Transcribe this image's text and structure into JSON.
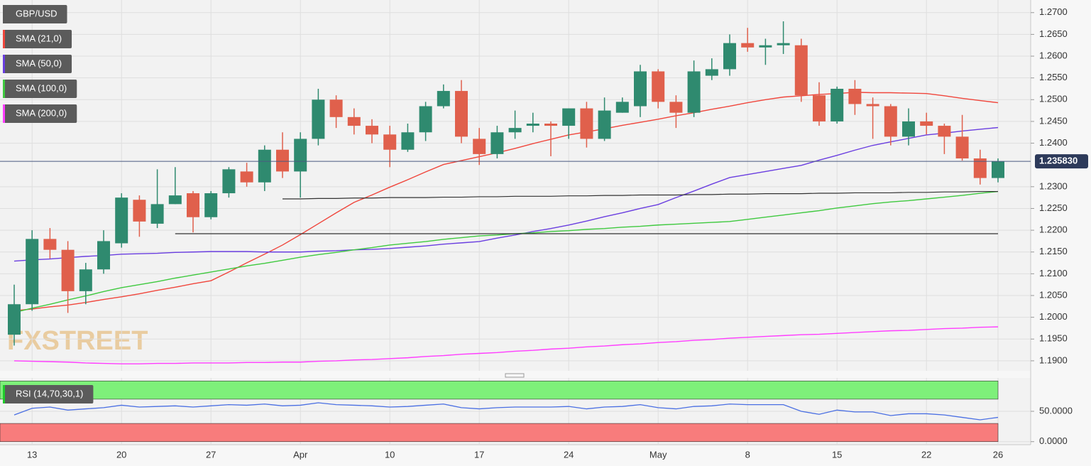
{
  "chart_data": [
    {
      "type": "candlestick",
      "title": "GBP/USD",
      "watermark": "FXSTREET",
      "categories": [
        null,
        "13",
        null,
        null,
        null,
        null,
        "20",
        null,
        null,
        null,
        null,
        "27",
        null,
        null,
        null,
        null,
        "Apr",
        null,
        null,
        null,
        null,
        "10",
        null,
        null,
        null,
        null,
        "17",
        null,
        null,
        null,
        null,
        "24",
        null,
        null,
        null,
        null,
        "May",
        null,
        null,
        null,
        null,
        "8",
        null,
        null,
        null,
        null,
        "15",
        null,
        null,
        null,
        null,
        "22",
        null,
        null,
        null,
        "26"
      ],
      "open": [
        1.196,
        1.203,
        1.218,
        1.2155,
        1.206,
        1.211,
        1.217,
        1.227,
        1.2215,
        1.226,
        1.2285,
        1.223,
        1.2285,
        1.2335,
        1.231,
        1.2385,
        1.2335,
        1.241,
        1.25,
        1.246,
        1.244,
        1.242,
        1.2385,
        1.2425,
        1.2485,
        1.252,
        1.241,
        1.2375,
        1.2425,
        1.244,
        1.2445,
        1.244,
        1.248,
        1.241,
        1.247,
        1.2485,
        1.2565,
        1.2495,
        1.247,
        1.2555,
        1.257,
        1.263,
        1.262,
        1.2625,
        1.2625,
        1.251,
        1.245,
        1.2525,
        1.249,
        1.2485,
        1.2415,
        1.245,
        1.244,
        1.2415,
        1.2365,
        1.232
      ],
      "high": [
        1.2075,
        1.22,
        1.2205,
        1.2175,
        1.2125,
        1.22,
        1.2285,
        1.228,
        1.234,
        1.2345,
        1.229,
        1.229,
        1.2345,
        1.2355,
        1.2395,
        1.2425,
        1.2425,
        1.2525,
        1.251,
        1.248,
        1.2455,
        1.244,
        1.2445,
        1.2495,
        1.2535,
        1.2545,
        1.2435,
        1.244,
        1.2475,
        1.247,
        1.245,
        1.248,
        1.2495,
        1.2505,
        1.2505,
        1.258,
        1.257,
        1.251,
        1.259,
        1.2595,
        1.265,
        1.2665,
        1.264,
        1.268,
        1.264,
        1.254,
        1.253,
        1.2545,
        1.2505,
        1.249,
        1.248,
        1.247,
        1.2445,
        1.2465,
        1.2385,
        1.2365
      ],
      "low": [
        1.1935,
        1.2015,
        1.2135,
        1.201,
        1.203,
        1.21,
        1.216,
        1.2185,
        1.2205,
        1.226,
        1.2195,
        1.2225,
        1.2275,
        1.23,
        1.229,
        1.232,
        1.2275,
        1.2395,
        1.2435,
        1.242,
        1.24,
        1.2345,
        1.238,
        1.2405,
        1.248,
        1.24,
        1.235,
        1.2365,
        1.241,
        1.2425,
        1.237,
        1.241,
        1.239,
        1.2405,
        1.247,
        1.246,
        1.248,
        1.2435,
        1.246,
        1.2545,
        1.2555,
        1.261,
        1.258,
        1.2605,
        1.2495,
        1.244,
        1.2445,
        1.2465,
        1.241,
        1.2395,
        1.2395,
        1.242,
        1.2375,
        1.236,
        1.2305,
        1.231
      ],
      "close": [
        1.203,
        1.218,
        1.2155,
        1.206,
        1.211,
        1.2175,
        1.2275,
        1.222,
        1.226,
        1.228,
        1.223,
        1.2285,
        1.234,
        1.231,
        1.2385,
        1.2335,
        1.241,
        1.25,
        1.246,
        1.244,
        1.242,
        1.2385,
        1.2425,
        1.2485,
        1.252,
        1.2415,
        1.2375,
        1.2425,
        1.2435,
        1.2445,
        1.244,
        1.248,
        1.241,
        1.2475,
        1.2495,
        1.2565,
        1.2495,
        1.247,
        1.2565,
        1.257,
        1.263,
        1.262,
        1.2625,
        1.263,
        1.251,
        1.245,
        1.2525,
        1.249,
        1.2485,
        1.2415,
        1.245,
        1.244,
        1.2415,
        1.2365,
        1.232,
        1.2358
      ],
      "up_color": "#2f8a6f",
      "down_color": "#e0604c",
      "series": [
        {
          "name": "SMA (21,0)",
          "color": "#f0463c",
          "values": [
            1.2015,
            1.2019,
            1.2024,
            1.2028,
            1.2034,
            1.2041,
            1.2047,
            1.2054,
            1.2062,
            1.2069,
            1.2077,
            1.2084,
            1.2104,
            1.2125,
            1.2145,
            1.2166,
            1.219,
            1.2215,
            1.224,
            1.2264,
            1.2281,
            1.2299,
            1.2316,
            1.2334,
            1.2351,
            1.236,
            1.2369,
            1.2378,
            1.2388,
            1.2399,
            1.2409,
            1.2419,
            1.2426,
            1.2433,
            1.2441,
            1.2448,
            1.2455,
            1.2463,
            1.247,
            1.2478,
            1.2485,
            1.2493,
            1.25,
            1.2506,
            1.2509,
            1.2512,
            1.2514,
            1.2517,
            1.2516,
            1.2516,
            1.2515,
            1.2514,
            1.2509,
            1.2503,
            1.2498,
            1.2493
          ]
        },
        {
          "name": "SMA (50,0)",
          "color": "#6a3ee0",
          "values": [
            1.2129,
            1.2132,
            1.2134,
            1.2137,
            1.214,
            1.2142,
            1.2145,
            1.2146,
            1.2147,
            1.2149,
            1.215,
            1.2151,
            1.2151,
            1.2151,
            1.215,
            1.215,
            1.215,
            1.2152,
            1.2153,
            1.2155,
            1.2156,
            1.2158,
            1.2161,
            1.2164,
            1.2168,
            1.2171,
            1.2174,
            1.2182,
            1.2189,
            1.2197,
            1.2204,
            1.2212,
            1.2221,
            1.2231,
            1.224,
            1.225,
            1.2259,
            1.2275,
            1.229,
            1.2306,
            1.2321,
            1.2328,
            1.2335,
            1.2342,
            1.2349,
            1.2361,
            1.2372,
            1.2384,
            1.2395,
            1.2403,
            1.2411,
            1.2419,
            1.2423,
            1.2428,
            1.2432,
            1.2436
          ]
        },
        {
          "name": "SMA (100,0)",
          "color": "#3fc93f",
          "values": [
            1.2011,
            1.2021,
            1.203,
            1.204,
            1.2049,
            1.2059,
            1.2068,
            1.2075,
            1.2082,
            1.209,
            1.2097,
            1.2104,
            1.2111,
            1.2118,
            1.2124,
            1.2131,
            1.2138,
            1.2144,
            1.2149,
            1.2155,
            1.216,
            1.2166,
            1.217,
            1.2174,
            1.2179,
            1.2183,
            1.2187,
            1.2189,
            1.2192,
            1.2194,
            1.2197,
            1.2199,
            1.2202,
            1.2204,
            1.2207,
            1.2209,
            1.2212,
            1.2214,
            1.2216,
            1.2218,
            1.222,
            1.2225,
            1.223,
            1.2235,
            1.224,
            1.2245,
            1.2251,
            1.2256,
            1.2261,
            1.2265,
            1.2268,
            1.2272,
            1.2276,
            1.228,
            1.2285,
            1.2289
          ]
        },
        {
          "name": "SMA (200,0)",
          "color": "#ff3dff",
          "values": [
            1.19,
            1.1899,
            1.1898,
            1.1897,
            1.1895,
            1.1894,
            1.1893,
            1.1893,
            1.1894,
            1.1894,
            1.1895,
            1.1895,
            1.1895,
            1.1896,
            1.1896,
            1.1897,
            1.1897,
            1.1899,
            1.19,
            1.1902,
            1.1903,
            1.1905,
            1.1907,
            1.191,
            1.1912,
            1.1915,
            1.1917,
            1.1919,
            1.1922,
            1.1924,
            1.1927,
            1.1929,
            1.1932,
            1.1934,
            1.1937,
            1.1939,
            1.1942,
            1.1944,
            1.1947,
            1.1949,
            1.1952,
            1.1954,
            1.1956,
            1.1958,
            1.196,
            1.1961,
            1.1963,
            1.1965,
            1.1967,
            1.1969,
            1.197,
            1.1972,
            1.1974,
            1.1975,
            1.1977,
            1.1978
          ]
        }
      ],
      "trendlines": [
        {
          "color": "#333333",
          "values": [
            null,
            null,
            null,
            null,
            null,
            null,
            null,
            null,
            null,
            null,
            null,
            null,
            null,
            null,
            null,
            1.2272,
            1.2272,
            1.2273,
            1.2273,
            1.2274,
            1.2274,
            1.2275,
            1.2275,
            1.2275,
            1.2276,
            1.2276,
            1.2277,
            1.2277,
            1.2278,
            1.2278,
            1.2278,
            1.2279,
            1.2279,
            1.228,
            1.228,
            1.2281,
            1.2281,
            1.2281,
            1.2282,
            1.2282,
            1.2283,
            1.2283,
            1.2284,
            1.2284,
            1.2284,
            1.2285,
            1.2285,
            1.2286,
            1.2286,
            1.2286,
            1.2287,
            1.2287,
            1.2288,
            1.2288,
            1.2289,
            1.2289
          ]
        },
        {
          "color": "#333333",
          "values": [
            null,
            null,
            null,
            null,
            null,
            null,
            null,
            null,
            null,
            1.2192,
            1.2192,
            1.2192,
            1.2192,
            1.2192,
            1.2192,
            1.2192,
            1.2192,
            1.2192,
            1.2192,
            1.2192,
            1.2192,
            1.2192,
            1.2192,
            1.2192,
            1.2192,
            1.2192,
            1.2192,
            1.2192,
            1.2192,
            1.2192,
            1.2192,
            1.2192,
            1.2192,
            1.2192,
            1.2192,
            1.2192,
            1.2192,
            1.2192,
            1.2192,
            1.2192,
            1.2192,
            1.2192,
            1.2192,
            1.2192,
            1.2192,
            1.2192,
            1.2192,
            1.2192,
            1.2192,
            1.2192,
            1.2192,
            1.2192,
            1.2192,
            1.2192,
            1.2192,
            1.2192
          ]
        }
      ],
      "last_price": {
        "value": 1.23583,
        "label": "1.235830"
      },
      "ylim": [
        1.1877,
        1.2729
      ],
      "yticks": [
        {
          "value": 1.27,
          "label": "1.2700"
        },
        {
          "value": 1.265,
          "label": "1.2650"
        },
        {
          "value": 1.26,
          "label": "1.2600"
        },
        {
          "value": 1.255,
          "label": "1.2550"
        },
        {
          "value": 1.25,
          "label": "1.2500"
        },
        {
          "value": 1.245,
          "label": "1.2450"
        },
        {
          "value": 1.24,
          "label": "1.2400"
        },
        {
          "value": 1.23,
          "label": "1.2300"
        },
        {
          "value": 1.225,
          "label": "1.2250"
        },
        {
          "value": 1.22,
          "label": "1.2200"
        },
        {
          "value": 1.215,
          "label": "1.2150"
        },
        {
          "value": 1.21,
          "label": "1.2100"
        },
        {
          "value": 1.205,
          "label": "1.2050"
        },
        {
          "value": 1.2,
          "label": "1.2000"
        },
        {
          "value": 1.195,
          "label": "1.1950"
        },
        {
          "value": 1.19,
          "label": "1.1900"
        }
      ],
      "grid": true
    },
    {
      "type": "line",
      "series": [
        {
          "name": "RSI (14,70,30,1)",
          "color": "#4a6fe3",
          "values": [
            44,
            55,
            57,
            52,
            54,
            56,
            60,
            57,
            58,
            59,
            57,
            59,
            61,
            60,
            62,
            59,
            60,
            64,
            61,
            60,
            59,
            57,
            58,
            60,
            62,
            56,
            54,
            56,
            57,
            57,
            57,
            58,
            54,
            57,
            58,
            61,
            56,
            54,
            58,
            59,
            62,
            61,
            61,
            61,
            50,
            45,
            52,
            49,
            49,
            43,
            46,
            46,
            44,
            40,
            36,
            40
          ]
        }
      ],
      "overbought": 70,
      "oversold": 30,
      "overbought_color": "#7ef07a",
      "oversold_color": "#f87c7c",
      "ylim": [
        -5,
        105
      ],
      "yticks": [
        {
          "value": 50,
          "label": "50.0000"
        },
        {
          "value": 0,
          "label": "0.0000"
        }
      ],
      "grid": true
    }
  ]
}
